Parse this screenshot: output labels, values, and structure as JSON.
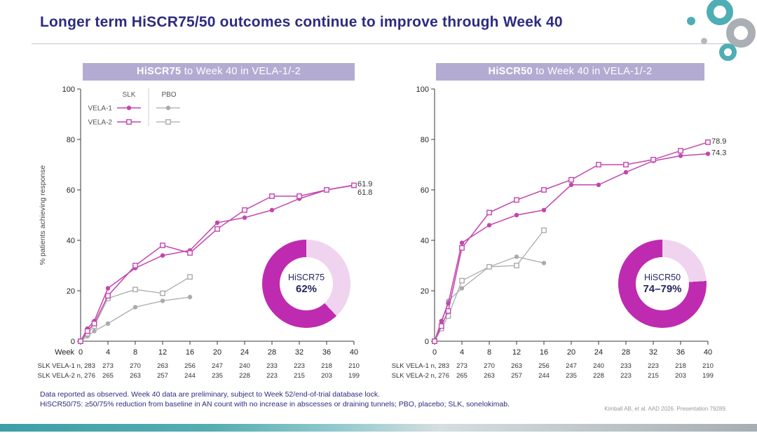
{
  "title": "Longer term HiSCR75/50 outcomes continue to improve through Week 40",
  "colors": {
    "slk": "#C346AE",
    "pbo": "#ABABAB",
    "donut_dark": "#BE2BB0",
    "donut_light": "#F0D3EE",
    "header_bg": "#B4ABD2",
    "title_navy": "#2D2B80",
    "teal": "#4FAEB3"
  },
  "legend": {
    "columns": [
      "SLK",
      "PBO"
    ],
    "rows": [
      "VELA-1",
      "VELA-2"
    ]
  },
  "n_table": {
    "weeks": [
      4,
      8,
      12,
      16,
      20,
      24,
      28,
      32,
      36,
      40
    ],
    "rows": [
      {
        "label": "SLK VELA-1 n, 283",
        "values": [
          273,
          270,
          263,
          256,
          247,
          240,
          233,
          223,
          218,
          210
        ]
      },
      {
        "label": "SLK VELA-2 n, 276",
        "values": [
          265,
          263,
          257,
          244,
          235,
          228,
          223,
          215,
          203,
          199
        ]
      }
    ]
  },
  "chart_data": [
    {
      "type": "line",
      "title_bold": "HiSCR75",
      "title_rest": " to Week 40 in VELA-1/-2",
      "ylabel": "% patients achieving response",
      "xlabel": "Week",
      "ylim": [
        0,
        100
      ],
      "yticks": [
        0,
        20,
        40,
        60,
        80,
        100
      ],
      "xticks": [
        0,
        4,
        8,
        12,
        16,
        20,
        24,
        28,
        32,
        36,
        40
      ],
      "series": [
        {
          "name": "VELA-1 SLK",
          "marker": "circle",
          "color": "slk",
          "x": [
            0,
            1,
            2,
            4,
            8,
            12,
            16,
            20,
            24,
            28,
            32,
            36,
            40
          ],
          "values": [
            0,
            5,
            8,
            21,
            29,
            34,
            36,
            47,
            49,
            52,
            56.5,
            60,
            61.9
          ]
        },
        {
          "name": "VELA-2 SLK",
          "marker": "square",
          "color": "slk",
          "x": [
            0,
            1,
            2,
            4,
            8,
            12,
            16,
            20,
            24,
            28,
            32,
            36,
            40
          ],
          "values": [
            0,
            4,
            7,
            18,
            30,
            38,
            35,
            44.5,
            52,
            57.5,
            57.5,
            60,
            61.8
          ]
        },
        {
          "name": "VELA-1 PBO",
          "marker": "circle",
          "color": "pbo",
          "x": [
            0,
            1,
            2,
            4,
            8,
            12,
            16
          ],
          "values": [
            0,
            2,
            4,
            7,
            13.5,
            16,
            17.5
          ]
        },
        {
          "name": "VELA-2 PBO",
          "marker": "square",
          "color": "pbo",
          "x": [
            0,
            1,
            2,
            4,
            8,
            12,
            16
          ],
          "values": [
            0,
            3,
            6,
            17,
            20.5,
            19,
            25.5
          ]
        }
      ],
      "end_labels": [
        {
          "text": "61.9",
          "value": 61.9
        },
        {
          "text": "61.8",
          "value": 61.8
        }
      ],
      "donut": {
        "label": "HiSCR75",
        "value_text": "62%",
        "percent": 62
      }
    },
    {
      "type": "line",
      "title_bold": "HiSCR50",
      "title_rest": " to Week 40 in VELA-1/-2",
      "ylabel": "",
      "xlabel": "",
      "ylim": [
        0,
        100
      ],
      "yticks": [
        0,
        20,
        40,
        60,
        80,
        100
      ],
      "xticks": [
        0,
        4,
        8,
        12,
        16,
        20,
        24,
        28,
        32,
        36,
        40
      ],
      "series": [
        {
          "name": "VELA-1 SLK",
          "marker": "circle",
          "color": "slk",
          "x": [
            0,
            1,
            2,
            4,
            8,
            12,
            16,
            20,
            24,
            28,
            32,
            36,
            40
          ],
          "values": [
            0,
            8,
            15,
            39,
            46,
            50,
            52,
            62,
            62,
            67,
            71.5,
            73.5,
            74.3
          ]
        },
        {
          "name": "VELA-2 SLK",
          "marker": "square",
          "color": "slk",
          "x": [
            0,
            1,
            2,
            4,
            8,
            12,
            16,
            20,
            24,
            28,
            32,
            36,
            40
          ],
          "values": [
            0,
            6,
            12,
            37,
            51,
            56,
            60,
            64,
            70,
            70,
            72,
            75.5,
            78.9
          ]
        },
        {
          "name": "VELA-1 PBO",
          "marker": "circle",
          "color": "pbo",
          "x": [
            0,
            1,
            2,
            4,
            8,
            12,
            16
          ],
          "values": [
            0,
            7,
            16,
            21,
            29.5,
            33.5,
            31
          ]
        },
        {
          "name": "VELA-2 PBO",
          "marker": "square",
          "color": "pbo",
          "x": [
            0,
            1,
            2,
            4,
            8,
            12,
            16
          ],
          "values": [
            0,
            5,
            10,
            24,
            29.5,
            30,
            44
          ]
        }
      ],
      "end_labels": [
        {
          "text": "78.9",
          "value": 78.9
        },
        {
          "text": "74.3",
          "value": 74.3
        }
      ],
      "donut": {
        "label": "HiSCR50",
        "value_text": "74–79%",
        "percent": 76
      }
    }
  ],
  "footnotes": [
    "Data reported as observed. Week 40 data are preliminary, subject to Week 52/end-of-trial database lock.",
    "HiSCR50/75: ≥50/75% reduction from baseline in AN count with no increase in abscesses or draining tunnels; PBO, placebo; SLK, sonelokimab."
  ],
  "citation": "Kimball AB, et al. AAD 2026. Presentation 79289."
}
